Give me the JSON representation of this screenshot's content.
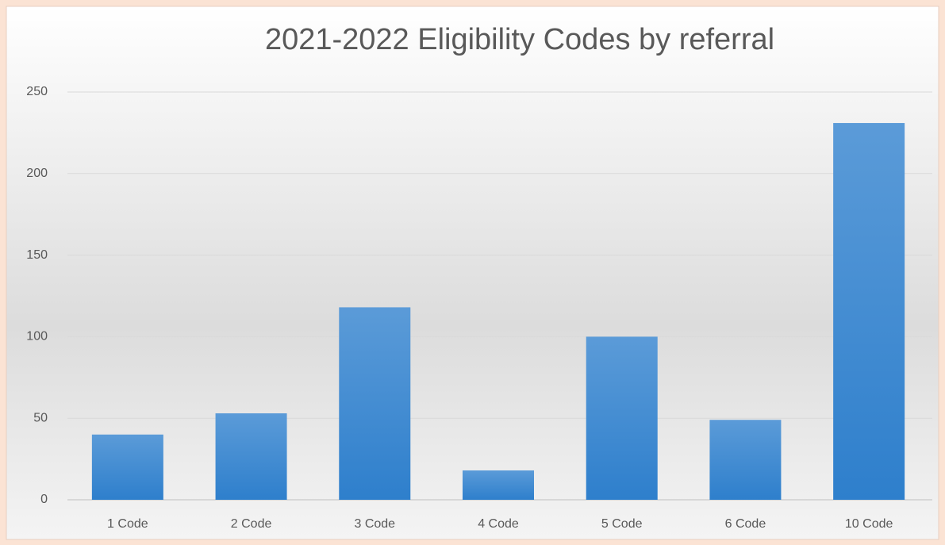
{
  "chart_data": {
    "type": "bar",
    "title": "2021-2022 Eligibility Codes by referral",
    "categories": [
      "1 Code",
      "2 Code",
      "3 Code",
      "4 Code",
      "5 Code",
      "6 Code",
      "10 Code"
    ],
    "values": [
      40,
      53,
      118,
      18,
      100,
      49,
      231
    ],
    "color": "#3d87cf",
    "ylim": [
      0,
      250
    ],
    "yticks": [
      0,
      50,
      100,
      150,
      200,
      250
    ],
    "grid": true
  }
}
